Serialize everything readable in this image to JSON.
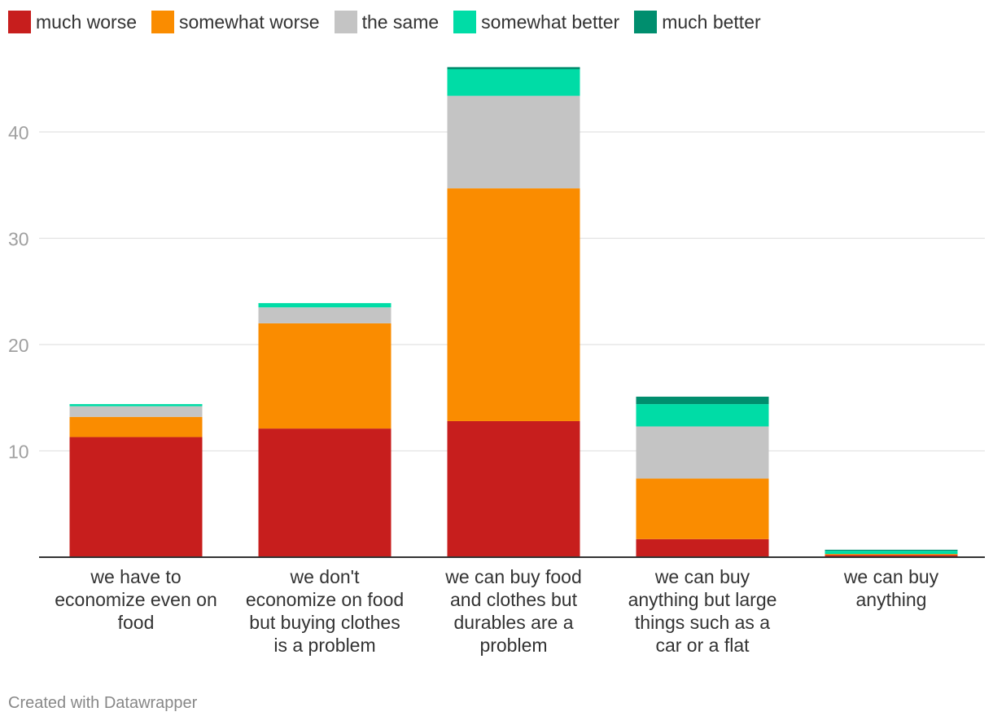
{
  "chart_data": {
    "type": "bar",
    "stacked": true,
    "title": "",
    "xlabel": "",
    "ylabel": "",
    "ylim": [
      0,
      46
    ],
    "yticks": [
      10,
      20,
      30,
      40
    ],
    "grid": true,
    "legend_position": "top-left",
    "categories": [
      [
        "we have to",
        "economize even on",
        "food"
      ],
      [
        "we don't",
        "economize on food",
        "but buying clothes",
        "is a problem"
      ],
      [
        "we can buy food",
        "and clothes but",
        "durables are a",
        "problem"
      ],
      [
        "we can buy",
        "anything but large",
        "things such as a",
        "car or a flat"
      ],
      [
        "we can buy",
        "anything"
      ]
    ],
    "series": [
      {
        "name": "much worse",
        "color": "#c71e1d",
        "values": [
          11.3,
          12.1,
          12.8,
          1.7,
          0.2
        ]
      },
      {
        "name": "somewhat worse",
        "color": "#fa8c00",
        "values": [
          1.9,
          9.9,
          21.9,
          5.7,
          0.1
        ]
      },
      {
        "name": "the same",
        "color": "#c4c4c4",
        "values": [
          1.0,
          1.5,
          8.7,
          4.9,
          0.0
        ]
      },
      {
        "name": "somewhat better",
        "color": "#00dca6",
        "values": [
          0.2,
          0.4,
          2.5,
          2.1,
          0.3
        ]
      },
      {
        "name": "much better",
        "color": "#008e6e",
        "values": [
          0.0,
          0.0,
          0.2,
          0.7,
          0.1
        ]
      }
    ]
  },
  "credit": "Created with Datawrapper"
}
